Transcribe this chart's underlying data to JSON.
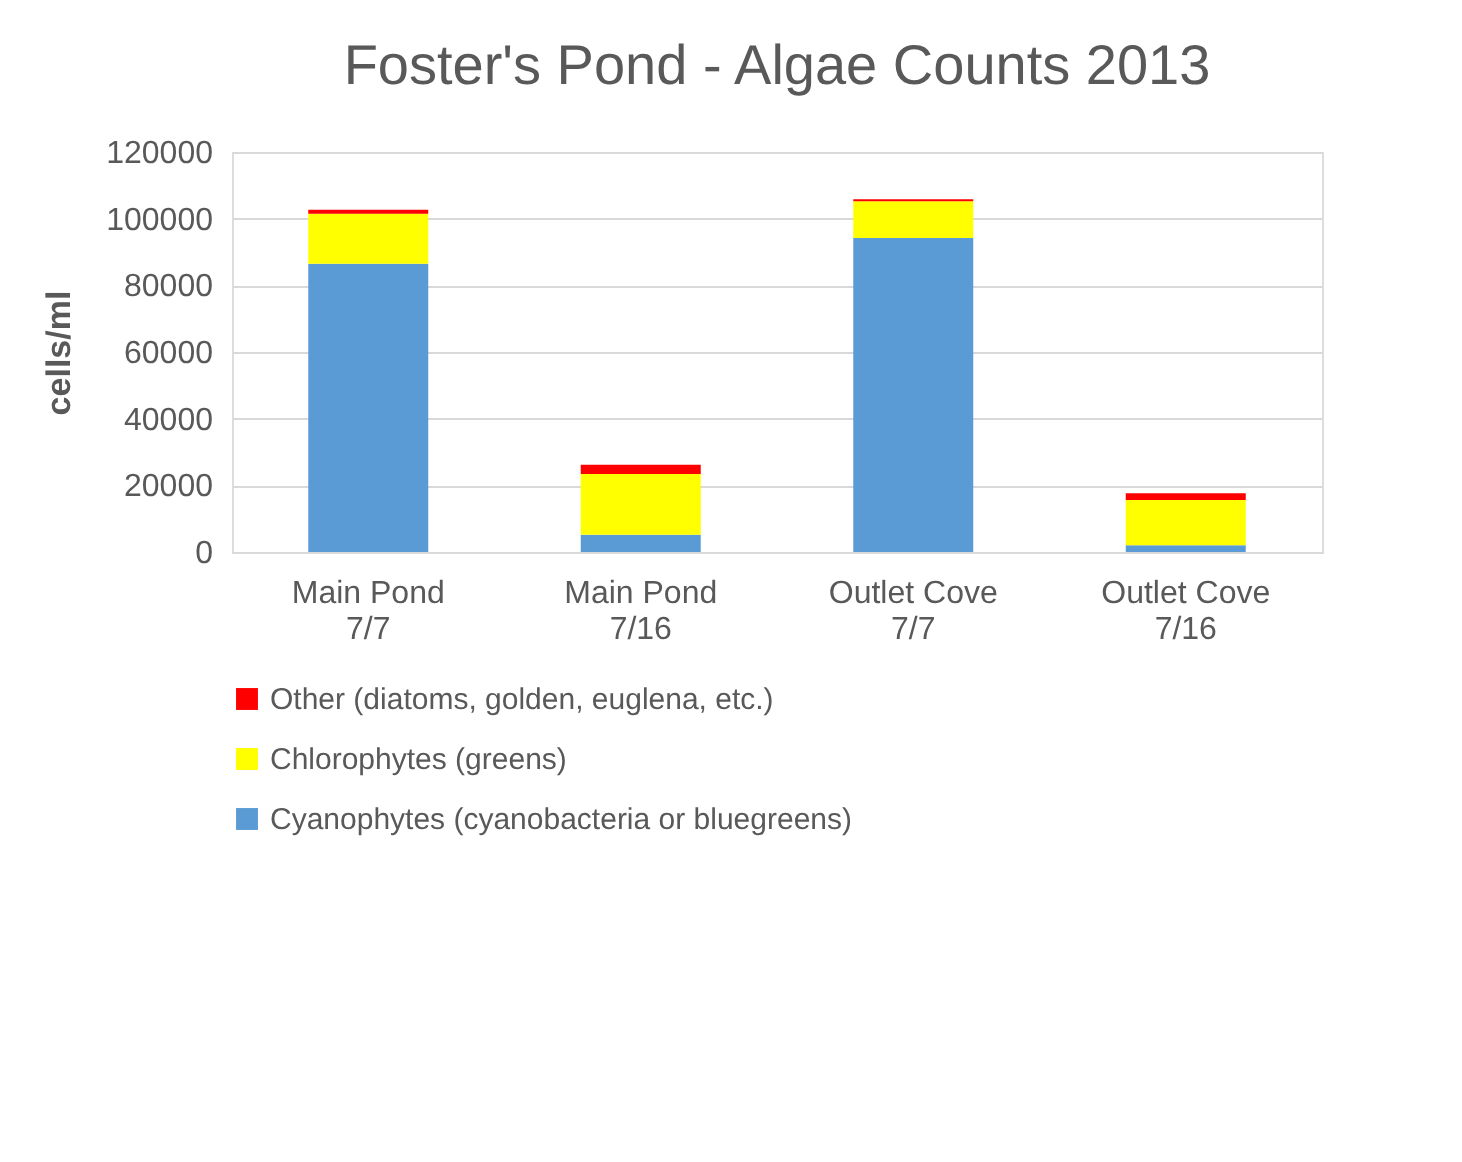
{
  "chart_data": {
    "type": "bar",
    "title": "Foster's Pond - Algae Counts 2013",
    "ylabel": "cells/ml",
    "categories": [
      "Main Pond 7/7",
      "Main Pond 7/16",
      "Outlet Cove 7/7",
      "Outlet Cove 7/16"
    ],
    "stacked": true,
    "series": [
      {
        "name": "Cyanophytes (cyanobacteria or bluegreens)",
        "color": "#5b9bd5",
        "values": [
          86500,
          5200,
          94200,
          2000
        ]
      },
      {
        "name": "Chlorophytes (greens)",
        "color": "#ffff00",
        "values": [
          15000,
          18200,
          11000,
          13600
        ]
      },
      {
        "name": "Other (diatoms, golden, euglena, etc.)",
        "color": "#ff0000",
        "values": [
          1200,
          2800,
          600,
          2000
        ]
      }
    ],
    "ylim": [
      0,
      120000
    ],
    "yticks": [
      0,
      20000,
      40000,
      60000,
      80000,
      100000,
      120000
    ],
    "grid": "y",
    "legend": "bottom"
  }
}
